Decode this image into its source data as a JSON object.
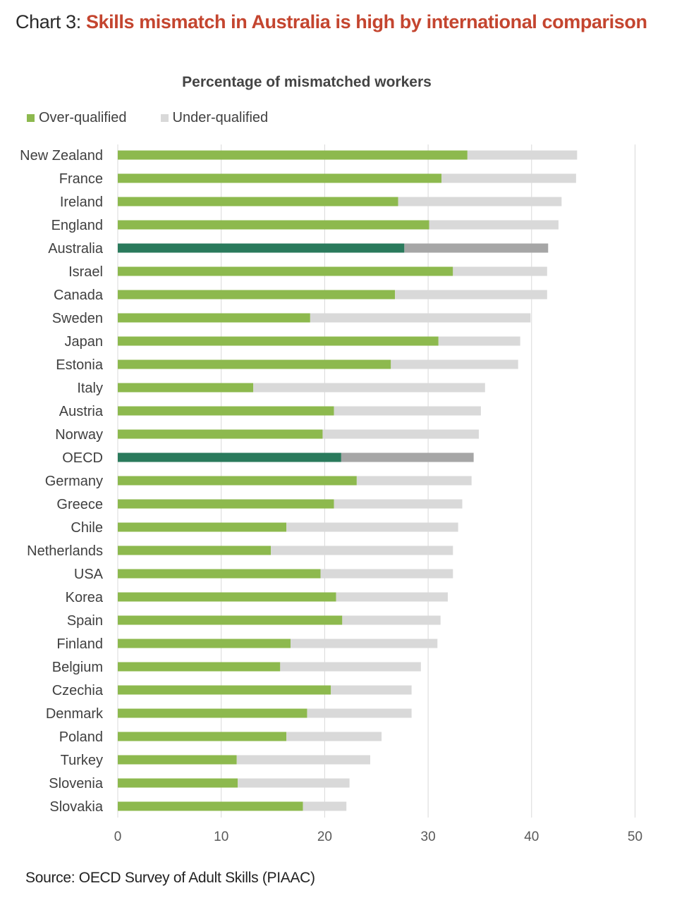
{
  "heading": {
    "prefix": "Chart 3: ",
    "highlight": "Skills mismatch in Australia is high by international comparison"
  },
  "colors": {
    "over": "#8db94e",
    "under": "#d9d9d9",
    "over_highlight": "#2a7a5c",
    "under_highlight": "#a6a6a6",
    "grid": "#d9d9d9",
    "heading_accent": "#c4452f"
  },
  "chart_data": {
    "type": "bar",
    "orientation": "horizontal",
    "stacked": true,
    "title": "Percentage of mismatched workers",
    "xlabel": "",
    "ylabel": "",
    "xlim": [
      0,
      50
    ],
    "xticks": [
      0,
      10,
      20,
      30,
      40,
      50
    ],
    "grid": true,
    "legend_position": "top-left",
    "categories": [
      "New Zealand",
      "France",
      "Ireland",
      "England",
      "Australia",
      "Israel",
      "Canada",
      "Sweden",
      "Japan",
      "Estonia",
      "Italy",
      "Austria",
      "Norway",
      "OECD",
      "Germany",
      "Greece",
      "Chile",
      "Netherlands",
      "USA",
      "Korea",
      "Spain",
      "Finland",
      "Belgium",
      "Czechia",
      "Denmark",
      "Poland",
      "Turkey",
      "Slovenia",
      "Slovakia"
    ],
    "highlighted": [
      "Australia",
      "OECD"
    ],
    "series": [
      {
        "name": "Over-qualified",
        "values": [
          33.8,
          31.3,
          27.1,
          30.1,
          27.7,
          32.4,
          26.8,
          18.6,
          31.0,
          26.4,
          13.1,
          20.9,
          19.8,
          21.6,
          23.1,
          20.9,
          16.3,
          14.8,
          19.6,
          21.1,
          21.7,
          16.7,
          15.7,
          20.6,
          18.3,
          16.3,
          11.5,
          11.6,
          17.9
        ]
      },
      {
        "name": "Under-qualified",
        "values": [
          10.6,
          13.0,
          15.8,
          12.5,
          13.9,
          9.1,
          14.7,
          21.3,
          7.9,
          12.3,
          22.4,
          14.2,
          15.1,
          12.8,
          11.1,
          12.4,
          16.6,
          17.6,
          12.8,
          10.8,
          9.5,
          14.2,
          13.6,
          7.8,
          10.1,
          9.2,
          12.9,
          10.8,
          4.2
        ]
      }
    ]
  },
  "source": "Source: OECD Survey of Adult Skills (PIAAC)"
}
